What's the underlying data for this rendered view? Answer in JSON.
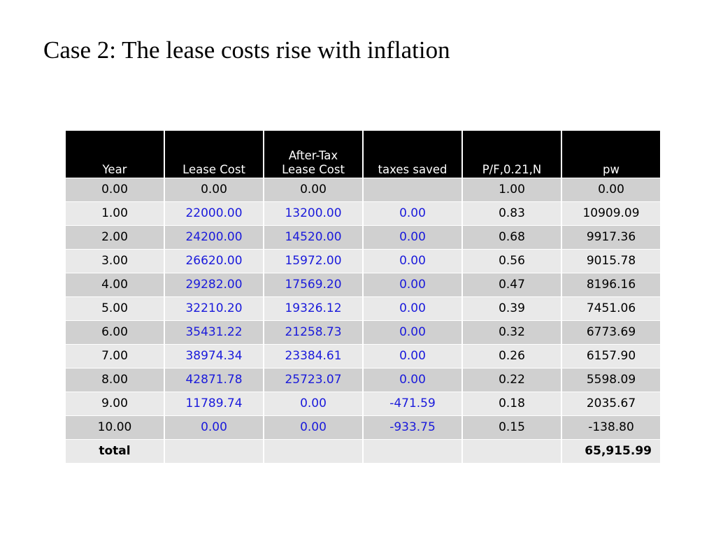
{
  "title": "Case 2: The lease costs rise with inflation",
  "table": {
    "headers": [
      "Year",
      "Lease Cost",
      "After-Tax\nLease Cost",
      "taxes saved",
      "P/F,0.21,N",
      "pw"
    ],
    "rows": [
      [
        "0.00",
        "0.00",
        "0.00",
        "",
        "1.00",
        "0.00"
      ],
      [
        "1.00",
        "22000.00",
        "13200.00",
        "0.00",
        "0.83",
        "10909.09"
      ],
      [
        "2.00",
        "24200.00",
        "14520.00",
        "0.00",
        "0.68",
        "9917.36"
      ],
      [
        "3.00",
        "26620.00",
        "15972.00",
        "0.00",
        "0.56",
        "9015.78"
      ],
      [
        "4.00",
        "29282.00",
        "17569.20",
        "0.00",
        "0.47",
        "8196.16"
      ],
      [
        "5.00",
        "32210.20",
        "19326.12",
        "0.00",
        "0.39",
        "7451.06"
      ],
      [
        "6.00",
        "35431.22",
        "21258.73",
        "0.00",
        "0.32",
        "6773.69"
      ],
      [
        "7.00",
        "38974.34",
        "23384.61",
        "0.00",
        "0.26",
        "6157.90"
      ],
      [
        "8.00",
        "42871.78",
        "25723.07",
        "0.00",
        "0.22",
        "5598.09"
      ],
      [
        "9.00",
        "11789.74",
        "0.00",
        "-471.59",
        "0.18",
        "2035.67"
      ],
      [
        "10.00",
        "0.00",
        "0.00",
        "-933.75",
        "0.15",
        "-138.80"
      ]
    ],
    "total": [
      "total",
      "",
      "",
      "",
      "",
      "65,915.99"
    ],
    "colors": {
      "header_bg": "#000000",
      "header_text": "#ffffff",
      "row_dark": "#d0d0d0",
      "row_light": "#e9e9e9",
      "input_text": "#1a1adb"
    }
  }
}
